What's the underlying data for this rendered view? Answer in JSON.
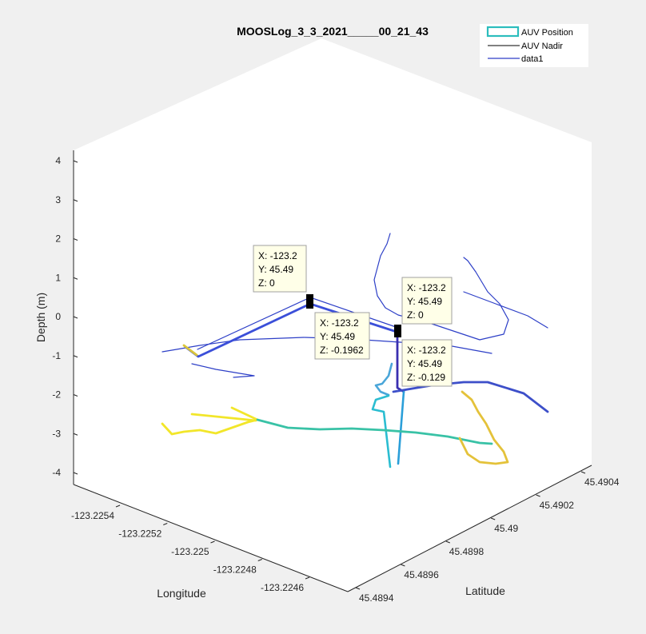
{
  "chart_data": {
    "type": "line3d",
    "title": "MOOSLog_3_3_2021_____00_21_43",
    "xlabel": "Longitude",
    "ylabel": "Latitude",
    "zlabel": "Depth (m)",
    "x_ticks": [
      "-123.2254",
      "-123.2252",
      "-123.225",
      "-123.2248",
      "-123.2246"
    ],
    "y_ticks": [
      "45.4894",
      "45.4896",
      "45.4898",
      "45.49",
      "45.4902",
      "45.4904"
    ],
    "z_ticks": [
      "4",
      "3",
      "2",
      "1",
      "0",
      "-1",
      "-2",
      "-3",
      "-4"
    ],
    "zlim": [
      -4,
      4
    ],
    "grid": false,
    "legend_position": "top-right",
    "legend": [
      {
        "label": "AUV Position",
        "color": "#2bbdbd",
        "kind": "box"
      },
      {
        "label": "AUV Nadir",
        "color": "#000000",
        "kind": "line"
      },
      {
        "label": "data1",
        "color": "#2d3fc7",
        "kind": "line"
      }
    ],
    "datatips": [
      {
        "lines": [
          "X: -123.2",
          "Y: 45.49",
          "Z: 0"
        ]
      },
      {
        "lines": [
          "X: -123.2",
          "Y: 45.49",
          "Z: -0.1962"
        ]
      },
      {
        "lines": [
          "X: -123.2",
          "Y: 45.49",
          "Z: 0"
        ]
      },
      {
        "lines": [
          "X: -123.2",
          "Y: 45.49",
          "Z: -0.129"
        ]
      }
    ]
  }
}
